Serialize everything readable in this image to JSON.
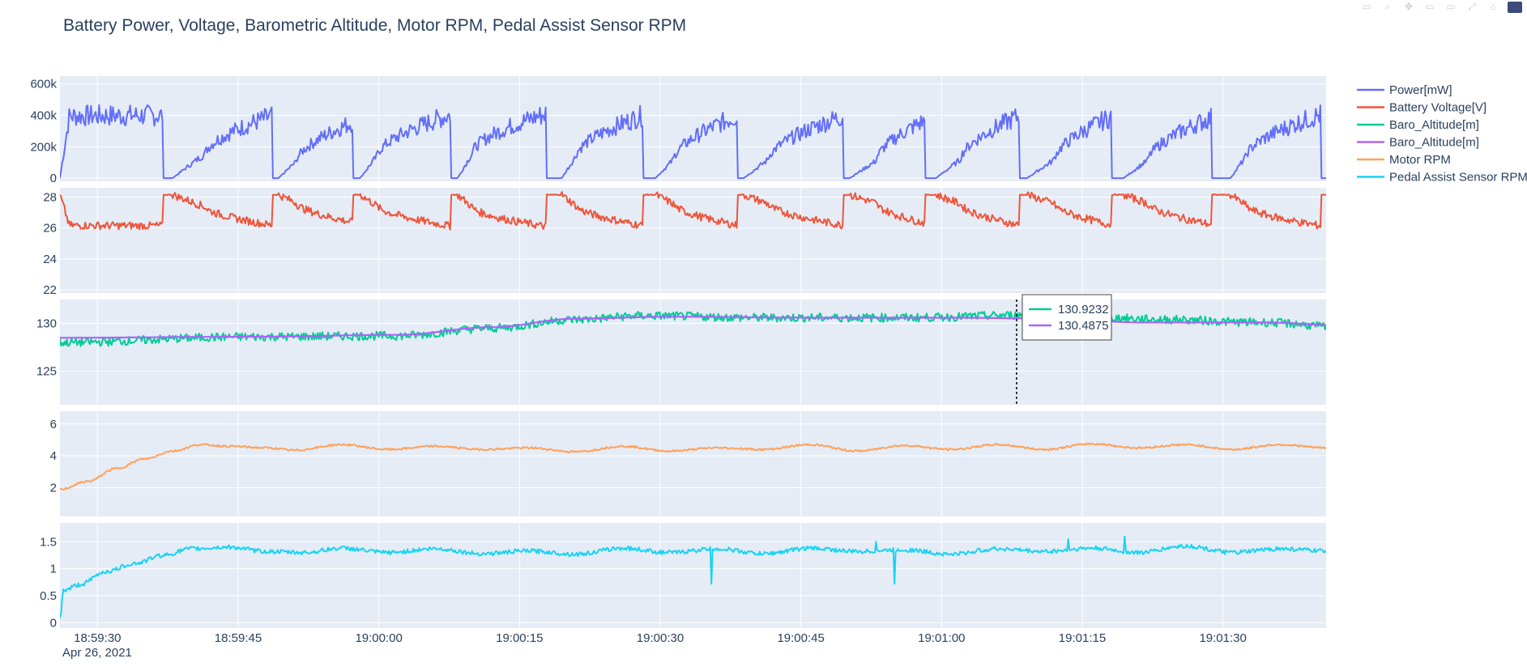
{
  "colors": {
    "power": "#636efa",
    "voltage": "#ef553b",
    "alt_raw": "#00cc96",
    "alt_smooth": "#ab63fa",
    "motor": "#ffa15a",
    "pas": "#19d3f3",
    "plot_bg": "#e5ecf6",
    "grid": "#ffffff",
    "text": "#2a3f5f"
  },
  "modebar": {
    "icons": [
      "camera-icon",
      "zoom-icon",
      "pan-icon",
      "zoom-in-icon",
      "zoom-out-icon",
      "autoscale-icon",
      "reset-axes-icon",
      "plotly-logo"
    ]
  },
  "hover": {
    "values": [
      "130.9232",
      "130.4875"
    ],
    "x_time": "19:01:08"
  },
  "chart_data": {
    "type": "line",
    "title": "Battery Power, Voltage, Barometric Altitude, Motor RPM, Pedal Assist Sensor RPM",
    "x_range": [
      "18:59:26",
      "19:01:41"
    ],
    "x_ticks": [
      "18:59:30",
      "18:59:45",
      "19:00:00",
      "19:00:15",
      "19:00:30",
      "19:00:45",
      "19:01:00",
      "19:01:15",
      "19:01:30"
    ],
    "x_date_label": "Apr 26, 2021",
    "legend": [
      {
        "name": "Power[mW]",
        "color_key": "power"
      },
      {
        "name": "Battery Voltage[V]",
        "color_key": "voltage"
      },
      {
        "name": "Baro_Altitude[m]",
        "color_key": "alt_raw"
      },
      {
        "name": "Baro_Altitude[m]",
        "color_key": "alt_smooth"
      },
      {
        "name": "Motor RPM",
        "color_key": "motor"
      },
      {
        "name": "Pedal Assist Sensor RPM",
        "color_key": "pas"
      }
    ],
    "subplots": [
      {
        "id": "power",
        "ylim": [
          -20000,
          650000
        ],
        "yticks": [
          0,
          200000,
          400000,
          600000
        ],
        "ytick_labels": [
          "0",
          "200k",
          "400k",
          "600k"
        ],
        "series": [
          {
            "name": "Power[mW]",
            "color_key": "power",
            "cycles": [
              [
                0,
                1,
                11,
                400000,
                0.99
              ],
              [
                12,
                15.5,
                22.6,
                395000,
                0.4
              ],
              [
                23.3,
                25.2,
                31.2,
                355000,
                0.3
              ],
              [
                32,
                33.8,
                41.7,
                405000,
                0.35
              ],
              [
                42.4,
                44,
                51.8,
                410000,
                0.4
              ],
              [
                53.5,
                55,
                62.2,
                400000,
                0.35
              ],
              [
                63.5,
                65.4,
                72.2,
                395000,
                0.3
              ],
              [
                72.9,
                75.5,
                83.5,
                395000,
                0.3
              ],
              [
                84.2,
                87,
                92.2,
                365000,
                0.3
              ],
              [
                93.4,
                96,
                102.3,
                395000,
                0.3
              ],
              [
                103.1,
                106,
                112.1,
                390000,
                0.3
              ],
              [
                113.4,
                116,
                122.8,
                385000,
                0.3
              ],
              [
                124.8,
                126.5,
                134.5,
                405000,
                0.35
              ],
              [
                137.5,
                139.5,
                140.3,
                240000,
                0.3
              ]
            ]
          }
        ]
      },
      {
        "id": "voltage",
        "ylim": [
          21.8,
          28.6
        ],
        "yticks": [
          22,
          24,
          26,
          28
        ],
        "ytick_labels": [
          "22",
          "24",
          "26",
          "28"
        ],
        "series": [
          {
            "name": "Battery Voltage[V]",
            "color_key": "voltage"
          }
        ]
      },
      {
        "id": "altitude",
        "ylim": [
          121.5,
          132.5
        ],
        "yticks": [
          125,
          130
        ],
        "ytick_labels": [
          "125",
          "130"
        ],
        "series": [
          {
            "name": "Baro_Altitude[m]",
            "color_key": "alt_raw",
            "keypoints": [
              [
                0,
                128
              ],
              [
                20,
                128.6
              ],
              [
                36,
                128.7
              ],
              [
                46,
                129.5
              ],
              [
                55,
                130.4
              ],
              [
                62,
                130.8
              ],
              [
                75,
                130.6
              ],
              [
                90,
                130.6
              ],
              [
                105,
                130.9
              ],
              [
                118,
                130.4
              ],
              [
                128,
                130.1
              ],
              [
                140.3,
                129.3
              ]
            ]
          },
          {
            "name": "Baro_Altitude[m]",
            "color_key": "alt_smooth",
            "keypoints": [
              [
                0,
                128.5
              ],
              [
                20,
                128.6
              ],
              [
                36,
                128.8
              ],
              [
                46,
                129.6
              ],
              [
                55,
                130.5
              ],
              [
                65,
                130.7
              ],
              [
                80,
                130.6
              ],
              [
                95,
                130.6
              ],
              [
                106,
                130.5
              ],
              [
                115,
                130.1
              ],
              [
                128,
                130.1
              ],
              [
                140.3,
                129.6
              ]
            ]
          }
        ]
      },
      {
        "id": "motor",
        "ylim": [
          0.2,
          6.8
        ],
        "yticks": [
          2,
          4,
          6
        ],
        "ytick_labels": [
          "2",
          "4",
          "6"
        ],
        "series": [
          {
            "name": "Motor RPM",
            "color_key": "motor",
            "keypoints": [
              [
                0,
                1.9
              ],
              [
                3,
                2.4
              ],
              [
                6,
                3.2
              ],
              [
                9,
                3.8
              ],
              [
                12,
                4.3
              ],
              [
                15,
                4.7
              ],
              [
                18,
                4.6
              ],
              [
                22,
                4.5
              ],
              [
                25,
                4.35
              ],
              [
                30,
                4.7
              ],
              [
                35,
                4.4
              ],
              [
                40,
                4.6
              ],
              [
                45,
                4.4
              ],
              [
                50,
                4.5
              ],
              [
                55,
                4.25
              ],
              [
                60,
                4.6
              ],
              [
                65,
                4.3
              ],
              [
                70,
                4.5
              ],
              [
                75,
                4.4
              ],
              [
                80,
                4.7
              ],
              [
                85,
                4.3
              ],
              [
                90,
                4.65
              ],
              [
                95,
                4.4
              ],
              [
                100,
                4.7
              ],
              [
                105,
                4.4
              ],
              [
                110,
                4.75
              ],
              [
                115,
                4.5
              ],
              [
                120,
                4.7
              ],
              [
                125,
                4.4
              ],
              [
                130,
                4.7
              ],
              [
                135,
                4.5
              ],
              [
                140.3,
                4.4
              ]
            ]
          }
        ]
      },
      {
        "id": "pas",
        "ylim": [
          -0.1,
          1.85
        ],
        "yticks": [
          0,
          0.5,
          1,
          1.5
        ],
        "ytick_labels": [
          "0",
          "0.5",
          "1",
          "1.5"
        ],
        "series": [
          {
            "name": "Pedal Assist Sensor RPM",
            "color_key": "pas",
            "keypoints": [
              [
                0,
                0.1
              ],
              [
                0.4,
                0.6
              ],
              [
                2,
                0.7
              ],
              [
                5,
                0.95
              ],
              [
                8,
                1.1
              ],
              [
                11,
                1.25
              ],
              [
                14,
                1.37
              ],
              [
                18,
                1.4
              ],
              [
                22,
                1.32
              ],
              [
                26,
                1.3
              ],
              [
                30,
                1.38
              ],
              [
                35,
                1.3
              ],
              [
                40,
                1.37
              ],
              [
                45,
                1.28
              ],
              [
                50,
                1.33
              ],
              [
                55,
                1.27
              ],
              [
                60,
                1.38
              ],
              [
                65,
                1.3
              ],
              [
                70,
                1.37
              ],
              [
                75,
                1.28
              ],
              [
                80,
                1.38
              ],
              [
                85,
                1.32
              ],
              [
                90,
                1.35
              ],
              [
                95,
                1.27
              ],
              [
                100,
                1.37
              ],
              [
                105,
                1.32
              ],
              [
                110,
                1.38
              ],
              [
                115,
                1.3
              ],
              [
                120,
                1.42
              ],
              [
                125,
                1.3
              ],
              [
                130,
                1.37
              ],
              [
                135,
                1.33
              ],
              [
                140.3,
                1.3
              ]
            ],
            "spikes": [
              [
                69.5,
                0.72
              ],
              [
                87,
                1.5
              ],
              [
                89,
                0.72
              ],
              [
                107.5,
                1.55
              ],
              [
                113.5,
                1.6
              ]
            ]
          }
        ]
      }
    ]
  }
}
